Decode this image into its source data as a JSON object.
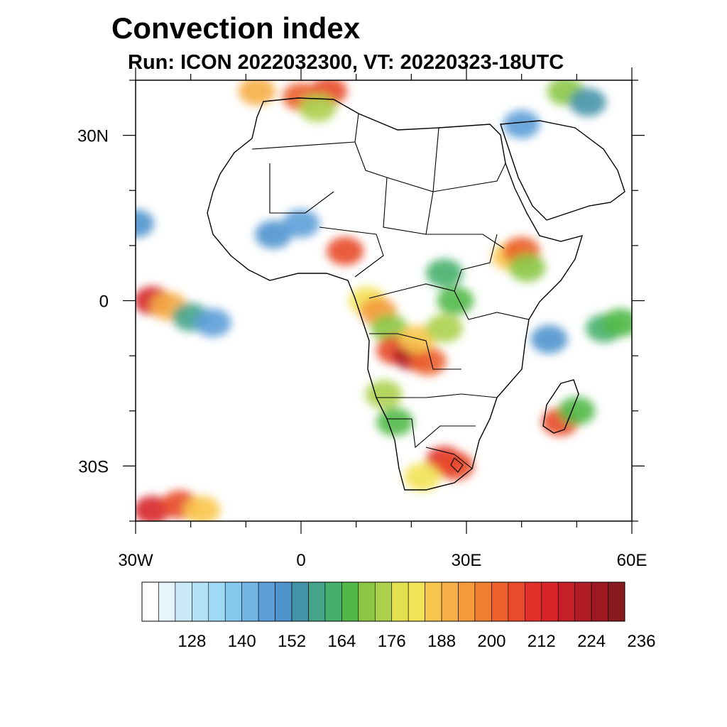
{
  "title": "Convection index",
  "subtitle": "Run: ICON 2022032300,  VT: 20220323-18UTC",
  "map": {
    "lon_range": [
      -30,
      60
    ],
    "lat_range": [
      -40,
      40
    ],
    "lat_labels": [
      {
        "value": 30,
        "text": "30N"
      },
      {
        "value": 0,
        "text": "0"
      },
      {
        "value": -30,
        "text": "30S"
      }
    ],
    "lon_labels": [
      {
        "value": -30,
        "text": "30W"
      },
      {
        "value": 0,
        "text": "0"
      },
      {
        "value": 30,
        "text": "30E"
      },
      {
        "value": 60,
        "text": "60E"
      }
    ]
  },
  "colorbar": {
    "labels": [
      "128",
      "140",
      "152",
      "164",
      "176",
      "188",
      "200",
      "212",
      "224",
      "236"
    ],
    "colors": [
      "#ffffff",
      "#e6f5fc",
      "#cbeaf8",
      "#b3e1f6",
      "#a0d9f5",
      "#87c8ee",
      "#73b5e4",
      "#5c9fd8",
      "#4f93cd",
      "#4593a8",
      "#44a48a",
      "#45b06c",
      "#52b948",
      "#8bc645",
      "#acd04c",
      "#e2e04f",
      "#f2e256",
      "#f8c64d",
      "#f6ae46",
      "#f49a3d",
      "#f07f34",
      "#ec612c",
      "#e84a2a",
      "#e0302a",
      "#d62429",
      "#c51f2a",
      "#b11d27",
      "#9e1a22",
      "#861a1e"
    ]
  },
  "cells": [
    {
      "lon": -27,
      "lat": 0,
      "v": 215
    },
    {
      "lon": -24,
      "lat": -1,
      "v": 190
    },
    {
      "lon": -20,
      "lat": -3,
      "v": 158
    },
    {
      "lon": -16,
      "lat": -4,
      "v": 145
    },
    {
      "lon": 12,
      "lat": 0,
      "v": 180
    },
    {
      "lon": 14,
      "lat": -2,
      "v": 195
    },
    {
      "lon": 16,
      "lat": -5,
      "v": 170
    },
    {
      "lon": 17,
      "lat": -9,
      "v": 205
    },
    {
      "lon": 20,
      "lat": -10,
      "v": 220
    },
    {
      "lon": 23,
      "lat": -11,
      "v": 200
    },
    {
      "lon": 21,
      "lat": -7,
      "v": 185
    },
    {
      "lon": 26,
      "lat": -5,
      "v": 175
    },
    {
      "lon": 28,
      "lat": 0,
      "v": 165
    },
    {
      "lon": 26,
      "lat": 5,
      "v": 160
    },
    {
      "lon": 38,
      "lat": 8,
      "v": 185
    },
    {
      "lon": 40,
      "lat": 9,
      "v": 200
    },
    {
      "lon": 41,
      "lat": 6,
      "v": 170
    },
    {
      "lon": 15,
      "lat": -17,
      "v": 175
    },
    {
      "lon": 17,
      "lat": -22,
      "v": 165
    },
    {
      "lon": 26,
      "lat": -29,
      "v": 210
    },
    {
      "lon": 28,
      "lat": -30,
      "v": 205
    },
    {
      "lon": 22,
      "lat": -32,
      "v": 180
    },
    {
      "lon": 47,
      "lat": -22,
      "v": 205
    },
    {
      "lon": 50,
      "lat": -20,
      "v": 165
    },
    {
      "lon": 55,
      "lat": -5,
      "v": 160
    },
    {
      "lon": 45,
      "lat": -7,
      "v": 150
    },
    {
      "lon": 58,
      "lat": -4,
      "v": 165
    },
    {
      "lon": 8,
      "lat": 9,
      "v": 205
    },
    {
      "lon": -5,
      "lat": 12,
      "v": 150
    },
    {
      "lon": 0,
      "lat": 14,
      "v": 145
    },
    {
      "lon": -8,
      "lat": 38,
      "v": 190
    },
    {
      "lon": 0,
      "lat": 37,
      "v": 200
    },
    {
      "lon": 5,
      "lat": 38,
      "v": 205
    },
    {
      "lon": 3,
      "lat": 35,
      "v": 175
    },
    {
      "lon": -27,
      "lat": -38,
      "v": 215
    },
    {
      "lon": -22,
      "lat": -37,
      "v": 205
    },
    {
      "lon": -18,
      "lat": -38,
      "v": 185
    },
    {
      "lon": 48,
      "lat": 38,
      "v": 170
    },
    {
      "lon": 52,
      "lat": 36,
      "v": 155
    },
    {
      "lon": -30,
      "lat": 14,
      "v": 150
    },
    {
      "lon": 40,
      "lat": 32,
      "v": 145
    }
  ]
}
